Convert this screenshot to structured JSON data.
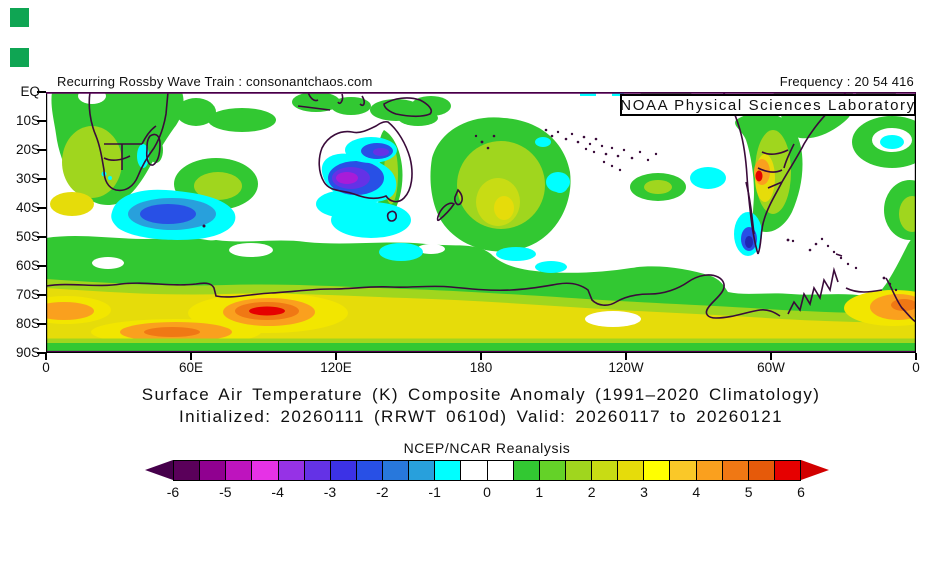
{
  "corner_markers": {
    "color": "#0FA553"
  },
  "header": {
    "left_text": "Recurring Rossby Wave Train : consonantchaos.com",
    "right_text": "Frequency : 20 54 416"
  },
  "map": {
    "overlay_label": "NOAA Physical Sciences Laboratory",
    "lat_labels": [
      "EQ",
      "10S",
      "20S",
      "30S",
      "40S",
      "50S",
      "60S",
      "70S",
      "80S",
      "90S"
    ],
    "lon_labels": [
      "0",
      "60E",
      "120E",
      "180",
      "120W",
      "60W",
      "0"
    ],
    "coastline_color": "#3A0B3A",
    "frame_top_color": "#5A005A"
  },
  "caption": {
    "title": "Surface Air Temperature (K) Composite Anomaly (1991–2020 Climatology)",
    "subtitle": "Initialized: 20260111 (RRWT 0610d) Valid: 20260117 to 20260121"
  },
  "colorbar": {
    "title": "NCEP/NCAR Reanalysis",
    "tick_labels": [
      "-6",
      "-5",
      "-4",
      "-3",
      "-2",
      "-1",
      "0",
      "1",
      "2",
      "3",
      "4",
      "5",
      "6"
    ],
    "cell_colors": [
      "#5A005A",
      "#900090",
      "#BE14BE",
      "#E632E6",
      "#9632E6",
      "#6432E6",
      "#3C32E6",
      "#2850E6",
      "#2878DC",
      "#28A0DC",
      "#00FFFF",
      "#FFFFFF",
      "#FFFFFF",
      "#32C832",
      "#64D228",
      "#A0D61E",
      "#C8DC14",
      "#E6DC0A",
      "#FFFF00",
      "#FAC828",
      "#FAA01E",
      "#F07814",
      "#E65A0A",
      "#E60000"
    ],
    "left_arrow_color": "#46004B",
    "right_arrow_color": "#D20000"
  },
  "chart_data": {
    "type": "filled_contour_map",
    "variable": "Surface Air Temperature Composite Anomaly (K)",
    "climatology": "1991-2020",
    "initialized": "20260111",
    "composite_id": "RRWT 0610d",
    "valid_from": "20260117",
    "valid_to": "20260121",
    "dataset": "NCEP/NCAR Reanalysis",
    "lat_range": [
      "EQ",
      "90S"
    ],
    "lon_ticks": [
      "0",
      "60E",
      "120E",
      "180",
      "120W",
      "60W",
      "0"
    ],
    "scale": {
      "min": -6,
      "max": 6,
      "cell_step": 0.5,
      "units": "K"
    },
    "anomaly_centers": [
      {
        "location": "Western Australia interior",
        "lat": "27S",
        "lon": "120E",
        "value": -4.5
      },
      {
        "location": "Northwest Australia",
        "lat": "17S",
        "lon": "125E",
        "value": -3
      },
      {
        "location": "Southern Indian Ocean",
        "lat": "42S",
        "lon": "35E",
        "value": -2.5
      },
      {
        "location": "Southern Chile coast",
        "lat": "50S",
        "lon": "73W",
        "value": -2.5
      },
      {
        "location": "Central Argentina",
        "lat": "28S",
        "lon": "66W",
        "value": 5.5
      },
      {
        "location": "East Antarctica",
        "lat": "76S",
        "lon": "93E",
        "value": 6
      },
      {
        "location": "Antarctica near 45E",
        "lat": "82S",
        "lon": "45E",
        "value": 4.5
      },
      {
        "location": "Antarctica near Greenwich meridian",
        "lat": "75S",
        "lon": "5W",
        "value": 4
      },
      {
        "location": "Tasman Sea / New Zealand",
        "lat": "38S",
        "lon": "175E",
        "value": 2.5
      },
      {
        "location": "Southwestern Africa",
        "lat": "25S",
        "lon": "20E",
        "value": 2
      },
      {
        "location": "Circumpolar Antarctic belt",
        "lat": "75S-85S",
        "lon": "all",
        "value": 3
      }
    ]
  }
}
